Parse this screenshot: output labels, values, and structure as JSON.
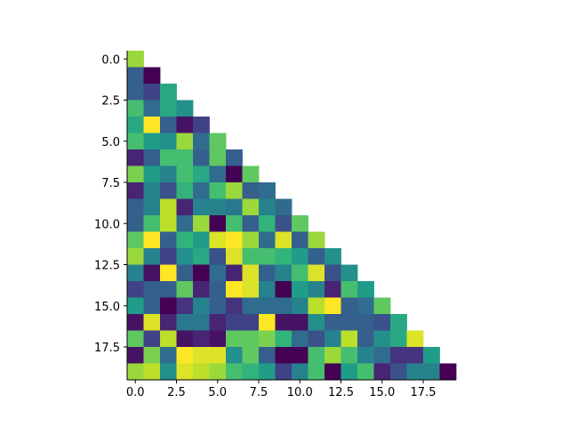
{
  "chart_data": {
    "type": "heatmap",
    "colormap": "viridis",
    "clim": [
      0,
      1
    ],
    "xlim": [
      -0.5,
      19.5
    ],
    "ylim": [
      19.5,
      -0.5
    ],
    "xticks": [
      {
        "value": 0,
        "label": "0.0"
      },
      2.5,
      {
        "value": 5,
        "label": "5.0"
      },
      7.5,
      {
        "value": 10,
        "label": "10.0"
      },
      12.5,
      {
        "value": 15,
        "label": "15.0"
      },
      17.5
    ],
    "yticks": [
      {
        "value": 0,
        "label": "0.0"
      },
      2.5,
      {
        "value": 5,
        "label": "5.0"
      },
      7.5,
      {
        "value": 10,
        "label": "10.0"
      },
      12.5,
      {
        "value": 15,
        "label": "15.0"
      },
      17.5
    ],
    "z": [
      [
        0.85
      ],
      [
        0.3,
        0.0
      ],
      [
        0.3,
        0.2,
        0.6
      ],
      [
        0.7,
        0.35,
        0.6,
        0.5
      ],
      [
        0.6,
        1.0,
        0.3,
        0.05,
        0.2
      ],
      [
        0.7,
        0.55,
        0.5,
        0.85,
        0.35,
        0.75
      ],
      [
        0.1,
        0.3,
        0.7,
        0.7,
        0.3,
        0.75,
        0.3
      ],
      [
        0.8,
        0.55,
        0.45,
        0.7,
        0.6,
        0.35,
        0.0,
        0.75
      ],
      [
        0.1,
        0.45,
        0.25,
        0.65,
        0.35,
        0.7,
        0.85,
        0.3,
        0.35
      ],
      [
        0.3,
        0.45,
        0.9,
        0.1,
        0.45,
        0.45,
        0.4,
        0.85,
        0.45,
        0.35
      ],
      [
        0.3,
        0.7,
        0.9,
        0.35,
        0.85,
        0.0,
        0.7,
        0.3,
        0.65,
        0.25,
        0.75
      ],
      [
        0.75,
        1.0,
        0.3,
        0.65,
        0.55,
        0.95,
        1.0,
        0.85,
        0.35,
        0.95,
        0.3,
        0.85
      ],
      [
        0.85,
        0.45,
        0.2,
        0.5,
        0.6,
        0.25,
        0.95,
        0.7,
        0.7,
        0.65,
        0.55,
        0.3,
        0.5
      ],
      [
        0.45,
        0.05,
        1.0,
        0.3,
        0.0,
        0.35,
        0.1,
        0.95,
        0.3,
        0.45,
        0.7,
        0.95,
        0.25,
        0.5
      ],
      [
        0.2,
        0.3,
        0.3,
        0.75,
        0.1,
        0.3,
        1.0,
        0.95,
        0.45,
        0.0,
        0.55,
        0.45,
        0.1,
        0.7,
        0.55
      ],
      [
        0.55,
        0.3,
        0.0,
        0.15,
        0.45,
        0.3,
        0.15,
        0.35,
        0.35,
        0.35,
        0.45,
        0.9,
        1.0,
        0.3,
        0.35,
        0.75
      ],
      [
        0.05,
        0.95,
        0.1,
        0.4,
        0.4,
        0.1,
        0.2,
        0.2,
        1.0,
        0.05,
        0.05,
        0.5,
        0.3,
        0.3,
        0.3,
        0.25,
        0.6
      ],
      [
        0.75,
        0.2,
        0.9,
        0.05,
        0.1,
        0.05,
        0.75,
        0.75,
        0.8,
        0.65,
        0.35,
        0.25,
        0.45,
        0.9,
        0.3,
        0.5,
        0.6,
        0.95
      ],
      [
        0.05,
        0.8,
        0.35,
        1.0,
        0.95,
        0.95,
        0.5,
        0.75,
        0.3,
        0.0,
        0.0,
        0.7,
        0.85,
        0.7,
        0.45,
        0.35,
        0.15,
        0.15,
        0.55
      ],
      [
        0.85,
        0.9,
        0.5,
        0.95,
        0.9,
        0.85,
        0.7,
        0.65,
        0.55,
        0.2,
        0.45,
        0.7,
        0.0,
        0.55,
        0.7,
        0.1,
        0.25,
        0.45,
        0.45,
        0.0
      ]
    ]
  }
}
